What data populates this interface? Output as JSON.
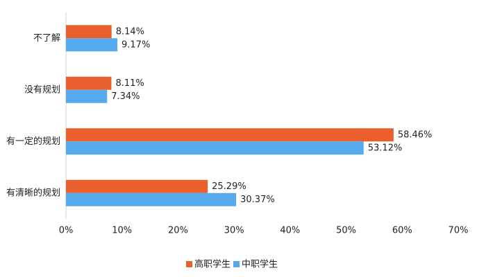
{
  "chart_data": {
    "type": "hbar",
    "categories": [
      "不了解",
      "没有规划",
      "有一定的规划",
      "有清晰的规划"
    ],
    "series": [
      {
        "name": "高职学生",
        "color": "#e9602e",
        "values": [
          8.14,
          8.11,
          58.46,
          25.29
        ],
        "value_labels": [
          "8.14%",
          "8.11%",
          "58.46%",
          "25.29%"
        ]
      },
      {
        "name": "中职学生",
        "color": "#56a9ec",
        "values": [
          9.17,
          7.34,
          53.12,
          30.37
        ],
        "value_labels": [
          "9.17%",
          "7.34%",
          "53.12%",
          "30.37%"
        ]
      }
    ],
    "xlim": [
      0,
      70
    ],
    "xticks": [
      {
        "value": 0,
        "label": "0%"
      },
      {
        "value": 10,
        "label": "10%"
      },
      {
        "value": 20,
        "label": "20%"
      },
      {
        "value": 30,
        "label": "30%"
      },
      {
        "value": 40,
        "label": "40%"
      },
      {
        "value": 50,
        "label": "50%"
      },
      {
        "value": 60,
        "label": "60%"
      },
      {
        "value": 70,
        "label": "70%"
      }
    ],
    "legend": "bottom"
  }
}
